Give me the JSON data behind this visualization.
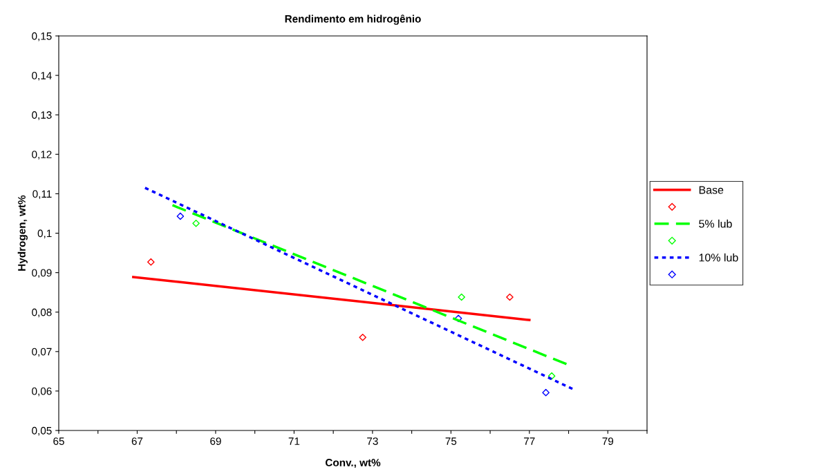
{
  "chart_data": {
    "type": "scatter",
    "title": "Rendimento em hidrogênio",
    "xlabel": "Conv., wt%",
    "ylabel": "Hydrogen, wt%",
    "xlim": [
      65,
      80
    ],
    "ylim": [
      0.05,
      0.15
    ],
    "xticks": [
      65,
      {
        "value": 66,
        "label": null
      },
      67,
      {
        "value": 68,
        "label": null
      },
      69,
      {
        "value": 70,
        "label": null
      },
      71,
      {
        "value": 72,
        "label": null
      },
      73,
      {
        "value": 74,
        "label": null
      },
      75,
      {
        "value": 76,
        "label": null
      },
      77,
      {
        "value": 78,
        "label": null
      },
      79,
      {
        "value": 80,
        "label": null
      }
    ],
    "yticks": [
      {
        "value": 0.05,
        "label": "0,05"
      },
      {
        "value": 0.06,
        "label": "0,06"
      },
      {
        "value": 0.07,
        "label": "0,07"
      },
      {
        "value": 0.08,
        "label": "0,08"
      },
      {
        "value": 0.09,
        "label": "0,09"
      },
      {
        "value": 0.1,
        "label": "0,1"
      },
      {
        "value": 0.11,
        "label": "0,11"
      },
      {
        "value": 0.12,
        "label": "0,12"
      },
      {
        "value": 0.13,
        "label": "0,13"
      },
      {
        "value": 0.14,
        "label": "0,14"
      },
      {
        "value": 0.15,
        "label": "0,15"
      }
    ],
    "grid": false,
    "legend": "right",
    "series": [
      {
        "name": "Base",
        "type": "line",
        "color": "#ff0000",
        "line_style": "solid",
        "marker": "none",
        "x": [
          66.9,
          77.0
        ],
        "values": [
          0.0889,
          0.078
        ]
      },
      {
        "color": "#ff0000",
        "marker": "diamond",
        "x": [
          67.35,
          72.75,
          76.5
        ],
        "values": [
          0.0927,
          0.0736,
          0.0838
        ]
      },
      {
        "name": "5% lub",
        "type": "line",
        "color": "#00ff00",
        "line_style": "dashed",
        "marker": "none",
        "x": [
          67.9,
          77.95
        ],
        "values": [
          0.1071,
          0.0668
        ]
      },
      {
        "color": "#00ff00",
        "marker": "diamond",
        "x": [
          68.5,
          75.27,
          77.57
        ],
        "values": [
          0.1025,
          0.0838,
          0.0638
        ]
      },
      {
        "name": "10% lub",
        "type": "line",
        "color": "#0000ff",
        "line_style": "dotted",
        "marker": "none",
        "x": [
          67.2,
          78.15
        ],
        "values": [
          0.1115,
          0.0603
        ]
      },
      {
        "color": "#0000ff",
        "marker": "diamond",
        "x": [
          68.1,
          75.19,
          77.42
        ],
        "values": [
          0.1043,
          0.0784,
          0.0596
        ]
      }
    ]
  }
}
